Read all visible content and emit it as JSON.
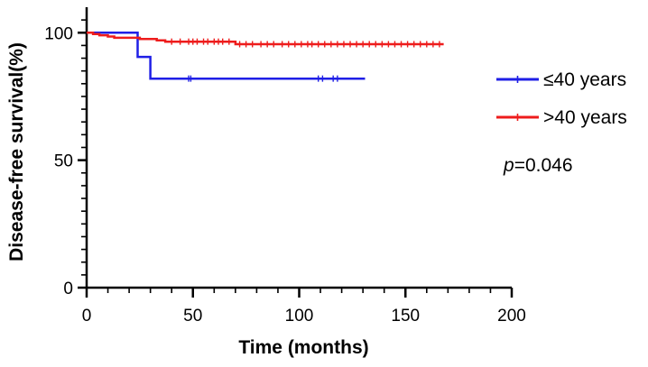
{
  "chart_data": {
    "type": "line",
    "title": "",
    "xlabel": "Time (months)",
    "ylabel": "Disease-free survival(%)",
    "xlim": [
      0,
      200
    ],
    "ylim": [
      0,
      110
    ],
    "xticks": [
      0,
      50,
      100,
      150,
      200
    ],
    "yticks": [
      0,
      50,
      100
    ],
    "grid": false,
    "legend_position": "right",
    "annotation": {
      "p_label": "p",
      "p_value": "=0.046"
    },
    "series": [
      {
        "name": "≤40 years",
        "color": "#1f1fe6",
        "x": [
          0,
          24,
          24,
          30,
          30,
          131
        ],
        "y": [
          100,
          100,
          90.5,
          90.5,
          82,
          82
        ],
        "censor_x": [
          48,
          49,
          109,
          111,
          116,
          118
        ]
      },
      {
        "name": ">40 years",
        "color": "#ee1c1c",
        "x": [
          0,
          3,
          3,
          6,
          6,
          10,
          10,
          13,
          13,
          25,
          25,
          33,
          33,
          37,
          37,
          70,
          70,
          168
        ],
        "y": [
          100,
          100,
          99.5,
          99.5,
          99,
          99,
          98.5,
          98.5,
          98,
          98,
          97.5,
          97.5,
          97,
          97,
          96.5,
          96.5,
          95.5,
          95.5
        ],
        "censor_x": [
          40,
          44,
          48,
          50,
          52,
          55,
          57,
          60,
          62,
          64,
          67,
          72,
          75,
          78,
          82,
          85,
          88,
          92,
          95,
          98,
          101,
          104,
          106,
          109,
          112,
          115,
          118,
          121,
          124,
          127,
          130,
          133,
          136,
          139,
          142,
          145,
          148,
          151,
          154,
          157,
          160,
          163,
          166
        ]
      }
    ]
  }
}
